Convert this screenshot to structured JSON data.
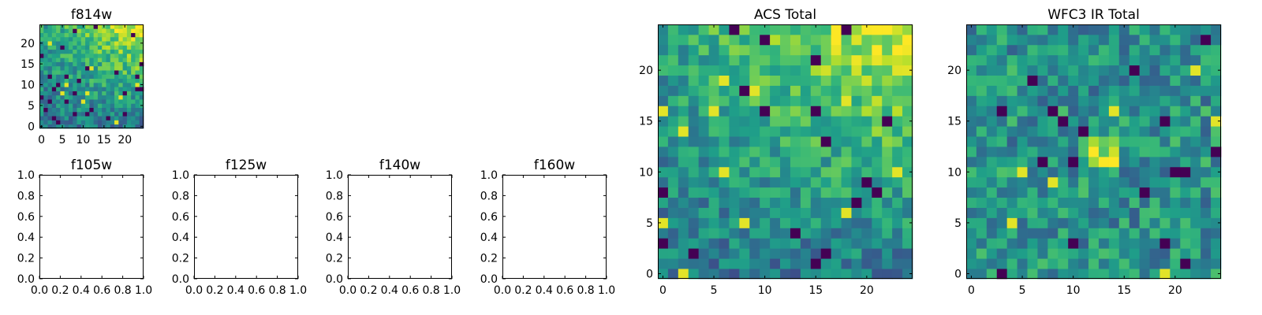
{
  "chart_data": [
    {
      "id": "f814w",
      "type": "heatmap",
      "title": "f814w",
      "colormap": "viridis",
      "grid_size": 25,
      "pattern": "acs",
      "seed": 814,
      "xlim": [
        -0.5,
        24.5
      ],
      "ylim": [
        -0.5,
        24.5
      ],
      "xticks": [
        0,
        5,
        10,
        15,
        20
      ],
      "yticks": [
        0,
        5,
        10,
        15,
        20
      ],
      "values": []
    },
    {
      "id": "f105w",
      "type": "heatmap",
      "title": "f105w",
      "empty": true,
      "xlim": [
        0,
        1
      ],
      "ylim": [
        0,
        1
      ],
      "xticks": [
        "0.0",
        "0.2",
        "0.4",
        "0.6",
        "0.8",
        "1.0"
      ],
      "yticks": [
        "0.0",
        "0.2",
        "0.4",
        "0.6",
        "0.8",
        "1.0"
      ],
      "values": []
    },
    {
      "id": "f125w",
      "type": "heatmap",
      "title": "f125w",
      "empty": true,
      "xlim": [
        0,
        1
      ],
      "ylim": [
        0,
        1
      ],
      "xticks": [
        "0.0",
        "0.2",
        "0.4",
        "0.6",
        "0.8",
        "1.0"
      ],
      "yticks": [
        "0.0",
        "0.2",
        "0.4",
        "0.6",
        "0.8",
        "1.0"
      ],
      "values": []
    },
    {
      "id": "f140w",
      "type": "heatmap",
      "title": "f140w",
      "empty": true,
      "xlim": [
        0,
        1
      ],
      "ylim": [
        0,
        1
      ],
      "xticks": [
        "0.0",
        "0.2",
        "0.4",
        "0.6",
        "0.8",
        "1.0"
      ],
      "yticks": [
        "0.0",
        "0.2",
        "0.4",
        "0.6",
        "0.8",
        "1.0"
      ],
      "values": []
    },
    {
      "id": "f160w",
      "type": "heatmap",
      "title": "f160w",
      "empty": true,
      "xlim": [
        0,
        1
      ],
      "ylim": [
        0,
        1
      ],
      "xticks": [
        "0.0",
        "0.2",
        "0.4",
        "0.6",
        "0.8",
        "1.0"
      ],
      "yticks": [
        "0.0",
        "0.2",
        "0.4",
        "0.6",
        "0.8",
        "1.0"
      ],
      "values": []
    },
    {
      "id": "acs-total",
      "type": "heatmap",
      "title": "ACS Total",
      "colormap": "viridis",
      "grid_size": 25,
      "pattern": "acs",
      "seed": 1607,
      "xlim": [
        -0.5,
        24.5
      ],
      "ylim": [
        -0.5,
        24.5
      ],
      "xticks": [
        0,
        5,
        10,
        15,
        20
      ],
      "yticks": [
        0,
        5,
        10,
        15,
        20
      ],
      "values": []
    },
    {
      "id": "wfc3-ir-total",
      "type": "heatmap",
      "title": "WFC3 IR Total",
      "colormap": "viridis",
      "grid_size": 25,
      "pattern": "ir",
      "seed": 2718,
      "xlim": [
        -0.5,
        24.5
      ],
      "ylim": [
        -0.5,
        24.5
      ],
      "xticks": [
        0,
        5,
        10,
        15,
        20
      ],
      "yticks": [
        0,
        5,
        10,
        15,
        20
      ],
      "values": []
    }
  ]
}
